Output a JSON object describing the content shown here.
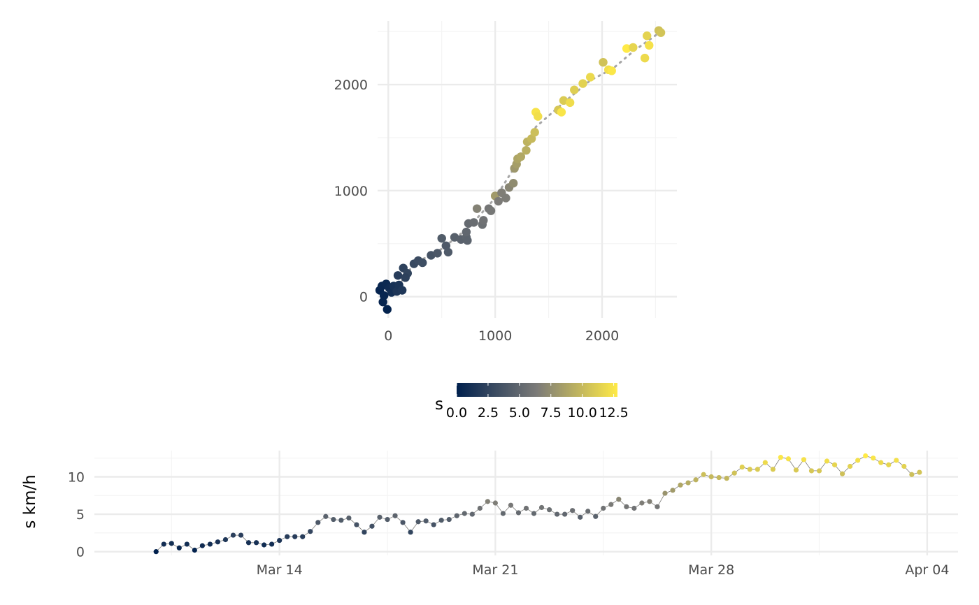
{
  "colors": {
    "low": "#00204D",
    "mid": "#7C7B78",
    "high": "#FFEA46",
    "track": "#A6A6A6",
    "grid_major": "#EBEBEB",
    "grid_minor": "#F4F4F4"
  },
  "chart_data": [
    {
      "type": "scatter",
      "title": "",
      "xlabel": "",
      "ylabel": "",
      "xlim": [
        -100,
        2700
      ],
      "ylim": [
        -200,
        2600
      ],
      "x_ticks": [
        0,
        1000,
        2000
      ],
      "y_ticks": [
        0,
        1000,
        2000
      ],
      "x_tick_labels": [
        "0",
        "1000",
        "2000"
      ],
      "y_tick_labels": [
        "0",
        "1000",
        "2000"
      ],
      "grid": true,
      "color_by": "s",
      "points": [
        {
          "x": -80,
          "y": 60,
          "s": 0.3
        },
        {
          "x": -60,
          "y": 100,
          "s": 0.5
        },
        {
          "x": -40,
          "y": 10,
          "s": 0.4
        },
        {
          "x": -20,
          "y": 120,
          "s": 0.6
        },
        {
          "x": 10,
          "y": 80,
          "s": 0.8
        },
        {
          "x": 30,
          "y": 40,
          "s": 1.0
        },
        {
          "x": -50,
          "y": -50,
          "s": 0.4
        },
        {
          "x": -10,
          "y": -120,
          "s": 0.2
        },
        {
          "x": 50,
          "y": 100,
          "s": 1.2
        },
        {
          "x": 80,
          "y": 50,
          "s": 1.5
        },
        {
          "x": 100,
          "y": 110,
          "s": 1.4
        },
        {
          "x": 130,
          "y": 60,
          "s": 1.6
        },
        {
          "x": 90,
          "y": 200,
          "s": 2.0
        },
        {
          "x": 140,
          "y": 270,
          "s": 2.4
        },
        {
          "x": 180,
          "y": 220,
          "s": 2.6
        },
        {
          "x": 160,
          "y": 180,
          "s": 2.3
        },
        {
          "x": 240,
          "y": 310,
          "s": 2.9
        },
        {
          "x": 280,
          "y": 340,
          "s": 3.1
        },
        {
          "x": 320,
          "y": 320,
          "s": 3.2
        },
        {
          "x": 400,
          "y": 390,
          "s": 3.6
        },
        {
          "x": 460,
          "y": 410,
          "s": 3.9
        },
        {
          "x": 500,
          "y": 550,
          "s": 4.2
        },
        {
          "x": 540,
          "y": 480,
          "s": 4.0
        },
        {
          "x": 560,
          "y": 420,
          "s": 4.1
        },
        {
          "x": 620,
          "y": 560,
          "s": 4.5
        },
        {
          "x": 680,
          "y": 540,
          "s": 4.6
        },
        {
          "x": 730,
          "y": 560,
          "s": 4.8
        },
        {
          "x": 740,
          "y": 530,
          "s": 4.7
        },
        {
          "x": 730,
          "y": 610,
          "s": 5.0
        },
        {
          "x": 750,
          "y": 690,
          "s": 5.2
        },
        {
          "x": 800,
          "y": 700,
          "s": 5.4
        },
        {
          "x": 830,
          "y": 830,
          "s": 6.8
        },
        {
          "x": 880,
          "y": 680,
          "s": 5.6
        },
        {
          "x": 890,
          "y": 720,
          "s": 5.8
        },
        {
          "x": 940,
          "y": 830,
          "s": 6.0
        },
        {
          "x": 960,
          "y": 810,
          "s": 6.1
        },
        {
          "x": 1000,
          "y": 950,
          "s": 8.2
        },
        {
          "x": 1030,
          "y": 900,
          "s": 6.4
        },
        {
          "x": 1060,
          "y": 980,
          "s": 6.6
        },
        {
          "x": 1100,
          "y": 930,
          "s": 6.5
        },
        {
          "x": 1130,
          "y": 1030,
          "s": 7.0
        },
        {
          "x": 1170,
          "y": 1070,
          "s": 7.4
        },
        {
          "x": 1180,
          "y": 1210,
          "s": 8.0
        },
        {
          "x": 1200,
          "y": 1250,
          "s": 8.4
        },
        {
          "x": 1210,
          "y": 1300,
          "s": 8.8
        },
        {
          "x": 1240,
          "y": 1320,
          "s": 9.0
        },
        {
          "x": 1290,
          "y": 1380,
          "s": 9.4
        },
        {
          "x": 1300,
          "y": 1460,
          "s": 9.6
        },
        {
          "x": 1340,
          "y": 1490,
          "s": 10.0
        },
        {
          "x": 1370,
          "y": 1550,
          "s": 10.3
        },
        {
          "x": 1380,
          "y": 1740,
          "s": 12.4
        },
        {
          "x": 1400,
          "y": 1700,
          "s": 12.1
        },
        {
          "x": 1590,
          "y": 1760,
          "s": 10.8
        },
        {
          "x": 1620,
          "y": 1740,
          "s": 12.5
        },
        {
          "x": 1640,
          "y": 1850,
          "s": 11.0
        },
        {
          "x": 1700,
          "y": 1830,
          "s": 12.0
        },
        {
          "x": 1740,
          "y": 1950,
          "s": 11.2
        },
        {
          "x": 1820,
          "y": 2010,
          "s": 11.4
        },
        {
          "x": 1890,
          "y": 2070,
          "s": 11.8
        },
        {
          "x": 2010,
          "y": 2210,
          "s": 10.5
        },
        {
          "x": 2060,
          "y": 2140,
          "s": 12.2
        },
        {
          "x": 2090,
          "y": 2130,
          "s": 12.6
        },
        {
          "x": 2230,
          "y": 2340,
          "s": 12.8
        },
        {
          "x": 2290,
          "y": 2350,
          "s": 11.6
        },
        {
          "x": 2400,
          "y": 2250,
          "s": 11.9
        },
        {
          "x": 2420,
          "y": 2460,
          "s": 11.5
        },
        {
          "x": 2440,
          "y": 2370,
          "s": 12.3
        },
        {
          "x": 2530,
          "y": 2510,
          "s": 10.4
        },
        {
          "x": 2550,
          "y": 2490,
          "s": 10.6
        }
      ],
      "track": [
        {
          "x": -80,
          "y": 60
        },
        {
          "x": 100,
          "y": 110
        },
        {
          "x": 240,
          "y": 310
        },
        {
          "x": 500,
          "y": 450
        },
        {
          "x": 750,
          "y": 650
        },
        {
          "x": 1000,
          "y": 930
        },
        {
          "x": 1200,
          "y": 1250
        },
        {
          "x": 1380,
          "y": 1600
        },
        {
          "x": 1640,
          "y": 1830
        },
        {
          "x": 1890,
          "y": 2040
        },
        {
          "x": 2100,
          "y": 2150
        },
        {
          "x": 2300,
          "y": 2320
        },
        {
          "x": 2550,
          "y": 2500
        }
      ]
    },
    {
      "type": "line",
      "title": "",
      "xlabel": "",
      "ylabel": "s km/h",
      "x_range": [
        "2023-03-08",
        "2023-04-05"
      ],
      "ylim": [
        -0.5,
        13.5
      ],
      "x_ticks": [
        "2023-03-14",
        "2023-03-21",
        "2023-03-28",
        "2023-04-04"
      ],
      "x_tick_labels": [
        "Mar 14",
        "Mar 21",
        "Mar 28",
        "Apr 04"
      ],
      "y_ticks": [
        0,
        5,
        10
      ],
      "y_tick_labels": [
        "0",
        "5",
        "10"
      ],
      "grid": true,
      "color_by": "s",
      "points": [
        {
          "x": "2023-03-10T00:00",
          "y": 0.0
        },
        {
          "x": "2023-03-10T06:00",
          "y": 1.0
        },
        {
          "x": "2023-03-10T12:00",
          "y": 1.1
        },
        {
          "x": "2023-03-10T18:00",
          "y": 0.5
        },
        {
          "x": "2023-03-11T00:00",
          "y": 1.0
        },
        {
          "x": "2023-03-11T06:00",
          "y": 0.2
        },
        {
          "x": "2023-03-11T12:00",
          "y": 0.8
        },
        {
          "x": "2023-03-11T18:00",
          "y": 1.0
        },
        {
          "x": "2023-03-12T00:00",
          "y": 1.3
        },
        {
          "x": "2023-03-12T06:00",
          "y": 1.6
        },
        {
          "x": "2023-03-12T12:00",
          "y": 2.2
        },
        {
          "x": "2023-03-12T18:00",
          "y": 2.2
        },
        {
          "x": "2023-03-13T00:00",
          "y": 1.2
        },
        {
          "x": "2023-03-13T06:00",
          "y": 1.2
        },
        {
          "x": "2023-03-13T12:00",
          "y": 0.9
        },
        {
          "x": "2023-03-13T18:00",
          "y": 1.0
        },
        {
          "x": "2023-03-14T00:00",
          "y": 1.5
        },
        {
          "x": "2023-03-14T06:00",
          "y": 2.0
        },
        {
          "x": "2023-03-14T12:00",
          "y": 2.0
        },
        {
          "x": "2023-03-14T18:00",
          "y": 2.0
        },
        {
          "x": "2023-03-15T00:00",
          "y": 2.7
        },
        {
          "x": "2023-03-15T06:00",
          "y": 3.9
        },
        {
          "x": "2023-03-15T12:00",
          "y": 4.7
        },
        {
          "x": "2023-03-15T18:00",
          "y": 4.3
        },
        {
          "x": "2023-03-16T00:00",
          "y": 4.2
        },
        {
          "x": "2023-03-16T06:00",
          "y": 4.5
        },
        {
          "x": "2023-03-16T12:00",
          "y": 3.6
        },
        {
          "x": "2023-03-16T18:00",
          "y": 2.6
        },
        {
          "x": "2023-03-17T00:00",
          "y": 3.4
        },
        {
          "x": "2023-03-17T06:00",
          "y": 4.6
        },
        {
          "x": "2023-03-17T12:00",
          "y": 4.3
        },
        {
          "x": "2023-03-17T18:00",
          "y": 4.8
        },
        {
          "x": "2023-03-18T00:00",
          "y": 3.9
        },
        {
          "x": "2023-03-18T06:00",
          "y": 2.6
        },
        {
          "x": "2023-03-18T12:00",
          "y": 4.0
        },
        {
          "x": "2023-03-18T18:00",
          "y": 4.1
        },
        {
          "x": "2023-03-19T00:00",
          "y": 3.6
        },
        {
          "x": "2023-03-19T06:00",
          "y": 4.2
        },
        {
          "x": "2023-03-19T12:00",
          "y": 4.3
        },
        {
          "x": "2023-03-19T18:00",
          "y": 4.8
        },
        {
          "x": "2023-03-20T00:00",
          "y": 5.1
        },
        {
          "x": "2023-03-20T06:00",
          "y": 5.0
        },
        {
          "x": "2023-03-20T12:00",
          "y": 5.8
        },
        {
          "x": "2023-03-20T18:00",
          "y": 6.7
        },
        {
          "x": "2023-03-21T00:00",
          "y": 6.5
        },
        {
          "x": "2023-03-21T06:00",
          "y": 5.1
        },
        {
          "x": "2023-03-21T12:00",
          "y": 6.2
        },
        {
          "x": "2023-03-21T18:00",
          "y": 5.2
        },
        {
          "x": "2023-03-22T00:00",
          "y": 5.8
        },
        {
          "x": "2023-03-22T06:00",
          "y": 5.1
        },
        {
          "x": "2023-03-22T12:00",
          "y": 5.9
        },
        {
          "x": "2023-03-22T18:00",
          "y": 5.6
        },
        {
          "x": "2023-03-23T00:00",
          "y": 5.0
        },
        {
          "x": "2023-03-23T06:00",
          "y": 5.0
        },
        {
          "x": "2023-03-23T12:00",
          "y": 5.5
        },
        {
          "x": "2023-03-23T18:00",
          "y": 4.6
        },
        {
          "x": "2023-03-24T00:00",
          "y": 5.4
        },
        {
          "x": "2023-03-24T06:00",
          "y": 4.7
        },
        {
          "x": "2023-03-24T12:00",
          "y": 5.8
        },
        {
          "x": "2023-03-24T18:00",
          "y": 6.3
        },
        {
          "x": "2023-03-25T00:00",
          "y": 7.0
        },
        {
          "x": "2023-03-25T06:00",
          "y": 6.0
        },
        {
          "x": "2023-03-25T12:00",
          "y": 5.8
        },
        {
          "x": "2023-03-25T18:00",
          "y": 6.5
        },
        {
          "x": "2023-03-26T00:00",
          "y": 6.7
        },
        {
          "x": "2023-03-26T06:00",
          "y": 6.0
        },
        {
          "x": "2023-03-26T12:00",
          "y": 7.8
        },
        {
          "x": "2023-03-26T18:00",
          "y": 8.2
        },
        {
          "x": "2023-03-27T00:00",
          "y": 8.9
        },
        {
          "x": "2023-03-27T06:00",
          "y": 9.2
        },
        {
          "x": "2023-03-27T12:00",
          "y": 9.6
        },
        {
          "x": "2023-03-27T18:00",
          "y": 10.3
        },
        {
          "x": "2023-03-28T00:00",
          "y": 10.0
        },
        {
          "x": "2023-03-28T06:00",
          "y": 9.9
        },
        {
          "x": "2023-03-28T12:00",
          "y": 9.8
        },
        {
          "x": "2023-03-28T18:00",
          "y": 10.5
        },
        {
          "x": "2023-03-29T00:00",
          "y": 11.3
        },
        {
          "x": "2023-03-29T06:00",
          "y": 11.0
        },
        {
          "x": "2023-03-29T12:00",
          "y": 11.0
        },
        {
          "x": "2023-03-29T18:00",
          "y": 11.9
        },
        {
          "x": "2023-03-30T00:00",
          "y": 11.0
        },
        {
          "x": "2023-03-30T06:00",
          "y": 12.6
        },
        {
          "x": "2023-03-30T12:00",
          "y": 12.4
        },
        {
          "x": "2023-03-30T18:00",
          "y": 10.9
        },
        {
          "x": "2023-03-31T00:00",
          "y": 12.3
        },
        {
          "x": "2023-03-31T06:00",
          "y": 10.8
        },
        {
          "x": "2023-03-31T12:00",
          "y": 10.8
        },
        {
          "x": "2023-03-31T18:00",
          "y": 12.1
        },
        {
          "x": "2023-04-01T00:00",
          "y": 11.6
        },
        {
          "x": "2023-04-01T06:00",
          "y": 10.4
        },
        {
          "x": "2023-04-01T12:00",
          "y": 11.4
        },
        {
          "x": "2023-04-01T18:00",
          "y": 12.2
        },
        {
          "x": "2023-04-02T00:00",
          "y": 12.8
        },
        {
          "x": "2023-04-02T06:00",
          "y": 12.5
        },
        {
          "x": "2023-04-02T12:00",
          "y": 11.9
        },
        {
          "x": "2023-04-02T18:00",
          "y": 11.6
        },
        {
          "x": "2023-04-03T00:00",
          "y": 12.2
        },
        {
          "x": "2023-04-03T06:00",
          "y": 11.4
        },
        {
          "x": "2023-04-03T12:00",
          "y": 10.3
        },
        {
          "x": "2023-04-03T18:00",
          "y": 10.6
        }
      ]
    }
  ],
  "legend": {
    "title": "s",
    "type": "colorbar",
    "position": "bottom",
    "range": [
      0,
      12.8
    ],
    "breaks": [
      0,
      2.5,
      5,
      7.5,
      10,
      12.5
    ],
    "labels": [
      "0.0",
      "2.5",
      "5.0",
      "7.5",
      "10.0",
      "12.5"
    ]
  }
}
